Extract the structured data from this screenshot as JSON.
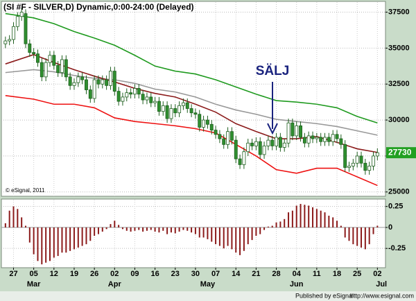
{
  "chart_data": [
    {
      "type": "candlestick",
      "title": "(SI #F - SILVER,D) Dynamic,0:00-24:00 (Delayed)",
      "annotation": "SÄLJ",
      "copyright": "© eSignal, 2011",
      "up_color": "#ffffff",
      "down_color": "#2f8f2f",
      "outline_color": "#1d5e1d",
      "open": [
        35300,
        35500,
        35600,
        36500,
        37200,
        37400,
        35300,
        34700,
        34600,
        34000,
        33000,
        34000,
        34500,
        33800,
        33300,
        34200,
        33000,
        32400,
        32600,
        33000,
        32800,
        32100,
        31500,
        32800,
        32500,
        32800,
        32400,
        33400,
        32000,
        31300,
        31600,
        31900,
        31800,
        32200,
        31800,
        31400,
        31600,
        31200,
        31300,
        30600,
        31000,
        30100,
        30800,
        30500,
        31000,
        31200,
        30800,
        30500,
        30400,
        29500,
        30000,
        29700,
        29300,
        29000,
        28700,
        28300,
        29200,
        28600,
        27300,
        26900,
        27800,
        28400,
        28200,
        28500,
        27600,
        28200,
        28600,
        28200,
        28800,
        28100,
        28400,
        29800,
        28900,
        29600,
        28800,
        28400,
        28900,
        28700,
        28800,
        28500,
        28800,
        28500,
        29000,
        28700,
        28300,
        26700,
        26800,
        27000,
        27500,
        27000,
        26500,
        26800,
        27500
      ],
      "high": [
        35800,
        35900,
        36800,
        37500,
        37800,
        37700,
        35600,
        35000,
        34900,
        34300,
        34300,
        34800,
        34800,
        34100,
        34500,
        34500,
        33300,
        32900,
        33300,
        33300,
        33100,
        32400,
        33100,
        33100,
        33100,
        33100,
        33700,
        33700,
        32300,
        31900,
        32200,
        32200,
        32500,
        32500,
        32100,
        31900,
        31900,
        31600,
        31600,
        31300,
        31300,
        31100,
        31100,
        31300,
        31500,
        31500,
        31100,
        30800,
        30700,
        30300,
        30300,
        30000,
        29600,
        29300,
        29000,
        29500,
        29500,
        28900,
        27600,
        28100,
        28700,
        28700,
        28800,
        28800,
        28500,
        28900,
        28900,
        29100,
        29100,
        28700,
        30100,
        30100,
        29900,
        29900,
        29100,
        29200,
        29200,
        29100,
        29100,
        29100,
        29100,
        29300,
        29300,
        29000,
        28600,
        27100,
        27300,
        27800,
        27800,
        27300,
        27100,
        27800,
        28030
      ],
      "low": [
        35000,
        35200,
        35300,
        36200,
        36900,
        35000,
        34400,
        34300,
        33700,
        32700,
        32700,
        33700,
        33500,
        33000,
        33000,
        32700,
        32100,
        32100,
        32300,
        32500,
        31800,
        31200,
        31200,
        32200,
        32200,
        32100,
        32100,
        31700,
        31000,
        31000,
        31300,
        31500,
        31500,
        31500,
        31100,
        31100,
        30900,
        30900,
        30300,
        30300,
        29800,
        29800,
        30200,
        30200,
        30700,
        30500,
        30200,
        30100,
        29200,
        29200,
        29400,
        29000,
        28700,
        28400,
        28000,
        28000,
        28300,
        27000,
        26600,
        26600,
        27500,
        27900,
        27900,
        27300,
        27300,
        27900,
        27900,
        27900,
        27800,
        27800,
        28100,
        28600,
        28600,
        28500,
        28100,
        28100,
        28400,
        28400,
        28200,
        28200,
        28200,
        28200,
        28400,
        28000,
        26400,
        26400,
        26500,
        26700,
        26700,
        26200,
        26200,
        26500,
        27200
      ],
      "close": [
        35500,
        35600,
        36500,
        37200,
        37500,
        35300,
        34700,
        34600,
        34000,
        33000,
        34000,
        34500,
        33800,
        33300,
        34200,
        33000,
        32400,
        32600,
        33000,
        32800,
        32100,
        31500,
        32800,
        32500,
        32800,
        32400,
        33400,
        32000,
        31300,
        31600,
        31900,
        31800,
        32200,
        31800,
        31400,
        31600,
        31200,
        31300,
        30600,
        31000,
        30100,
        30800,
        30500,
        31000,
        31200,
        30800,
        30500,
        30400,
        29500,
        30000,
        29700,
        29300,
        29000,
        28700,
        28300,
        29200,
        28600,
        27300,
        26900,
        27800,
        28400,
        28200,
        28500,
        27600,
        28200,
        28600,
        28200,
        28800,
        28100,
        28400,
        29800,
        28900,
        29600,
        28800,
        28400,
        28900,
        28700,
        28800,
        28500,
        28800,
        28500,
        29000,
        28700,
        28300,
        26700,
        26800,
        27000,
        27500,
        27000,
        26500,
        26800,
        27500,
        27730
      ],
      "last_color": "#22a022",
      "lines": [
        {
          "color": "#1e9a1e",
          "x": [
            0,
            7,
            12,
            17,
            22,
            27,
            32,
            37,
            42,
            47,
            52,
            57,
            62,
            67,
            72,
            77,
            82,
            87,
            92
          ],
          "values": [
            37400,
            37100,
            36700,
            36150,
            35700,
            35200,
            34500,
            33750,
            33400,
            33200,
            32800,
            32300,
            31800,
            31350,
            31250,
            31100,
            30850,
            30250,
            29800
          ]
        },
        {
          "color": "#999999",
          "x": [
            0,
            7,
            12,
            17,
            22,
            27,
            32,
            37,
            42,
            47,
            52,
            57,
            62,
            67,
            72,
            77,
            82,
            87,
            92
          ],
          "values": [
            33300,
            33500,
            33350,
            33100,
            32900,
            32800,
            32550,
            32150,
            31950,
            31600,
            31100,
            30700,
            30400,
            30050,
            29900,
            29750,
            29550,
            29250,
            28950
          ]
        },
        {
          "color": "#8b1a1a",
          "x": [
            0,
            7,
            12,
            17,
            22,
            27,
            32,
            37,
            42,
            47,
            52,
            57,
            62,
            67,
            72,
            77,
            82,
            87,
            92
          ],
          "values": [
            33900,
            34550,
            34000,
            33500,
            33050,
            32650,
            32200,
            31850,
            31600,
            31100,
            30550,
            29750,
            29200,
            28700,
            28700,
            28850,
            28450,
            28000,
            27750
          ]
        },
        {
          "color": "#ee1111",
          "x": [
            0,
            7,
            12,
            17,
            22,
            27,
            32,
            37,
            42,
            47,
            52,
            57,
            62,
            67,
            72,
            77,
            82,
            87,
            92
          ],
          "values": [
            31700,
            31450,
            31100,
            31100,
            30850,
            30150,
            29900,
            29750,
            29600,
            29400,
            29100,
            28300,
            27500,
            26550,
            26300,
            26650,
            26650,
            26050,
            25450
          ]
        }
      ],
      "xlim": [
        -1,
        94
      ],
      "ylim": [
        24700,
        38200
      ],
      "yticks": [
        25000,
        27500,
        30000,
        32500,
        35000,
        37500
      ],
      "xticks": [
        {
          "value": 2,
          "label": "27"
        },
        {
          "value": 7,
          "label": "05"
        },
        {
          "value": 12,
          "label": "12"
        },
        {
          "value": 17,
          "label": "19"
        },
        {
          "value": 22,
          "label": "26"
        },
        {
          "value": 27,
          "label": "02"
        },
        {
          "value": 32,
          "label": "09"
        },
        {
          "value": 37,
          "label": "16"
        },
        {
          "value": 42,
          "label": "23"
        },
        {
          "value": 47,
          "label": "30"
        },
        {
          "value": 52,
          "label": "07"
        },
        {
          "value": 57,
          "label": "14"
        },
        {
          "value": 62,
          "label": "21"
        },
        {
          "value": 67,
          "label": "28"
        },
        {
          "value": 72,
          "label": "04"
        },
        {
          "value": 77,
          "label": "11"
        },
        {
          "value": 82,
          "label": "18"
        },
        {
          "value": 87,
          "label": "25"
        },
        {
          "value": 92,
          "label": "02"
        }
      ],
      "month_ticks": [
        {
          "value": 7,
          "label": "Mar"
        },
        {
          "value": 27,
          "label": "Apr"
        },
        {
          "value": 50,
          "label": "May"
        },
        {
          "value": 72,
          "label": "Jun"
        },
        {
          "value": 93,
          "label": "Jul"
        }
      ],
      "grid": true
    },
    {
      "type": "bar",
      "color": "#8b1a1a",
      "values": [
        0.05,
        0.2,
        0.25,
        0.22,
        0.12,
        0.02,
        -0.18,
        -0.32,
        -0.4,
        -0.44,
        -0.42,
        -0.4,
        -0.36,
        -0.34,
        -0.3,
        -0.3,
        -0.28,
        -0.26,
        -0.24,
        -0.22,
        -0.2,
        -0.16,
        -0.1,
        -0.08,
        -0.05,
        -0.02,
        0.04,
        0.08,
        0.03,
        -0.02,
        -0.04,
        -0.05,
        -0.04,
        -0.03,
        -0.05,
        -0.04,
        -0.03,
        -0.05,
        -0.06,
        -0.04,
        -0.08,
        -0.06,
        -0.07,
        -0.05,
        -0.03,
        -0.04,
        -0.06,
        -0.08,
        -0.12,
        -0.12,
        -0.14,
        -0.17,
        -0.2,
        -0.22,
        -0.25,
        -0.22,
        -0.26,
        -0.3,
        -0.33,
        -0.28,
        -0.2,
        -0.15,
        -0.1,
        -0.08,
        -0.03,
        0.01,
        0.02,
        0.06,
        0.07,
        0.1,
        0.18,
        0.2,
        0.26,
        0.28,
        0.27,
        0.26,
        0.24,
        0.22,
        0.2,
        0.18,
        0.14,
        0.12,
        0.08,
        0.02,
        -0.12,
        -0.16,
        -0.2,
        -0.22,
        -0.24,
        -0.26,
        -0.2,
        -0.08,
        0.02
      ],
      "xlim": [
        -1,
        94
      ],
      "ylim": [
        -0.48,
        0.33
      ],
      "yticks": [
        -0.25,
        0,
        0.25
      ],
      "grid": true
    }
  ],
  "footer": {
    "publisher": "Published by eSignal",
    "url": "http://www.esignal.com"
  }
}
